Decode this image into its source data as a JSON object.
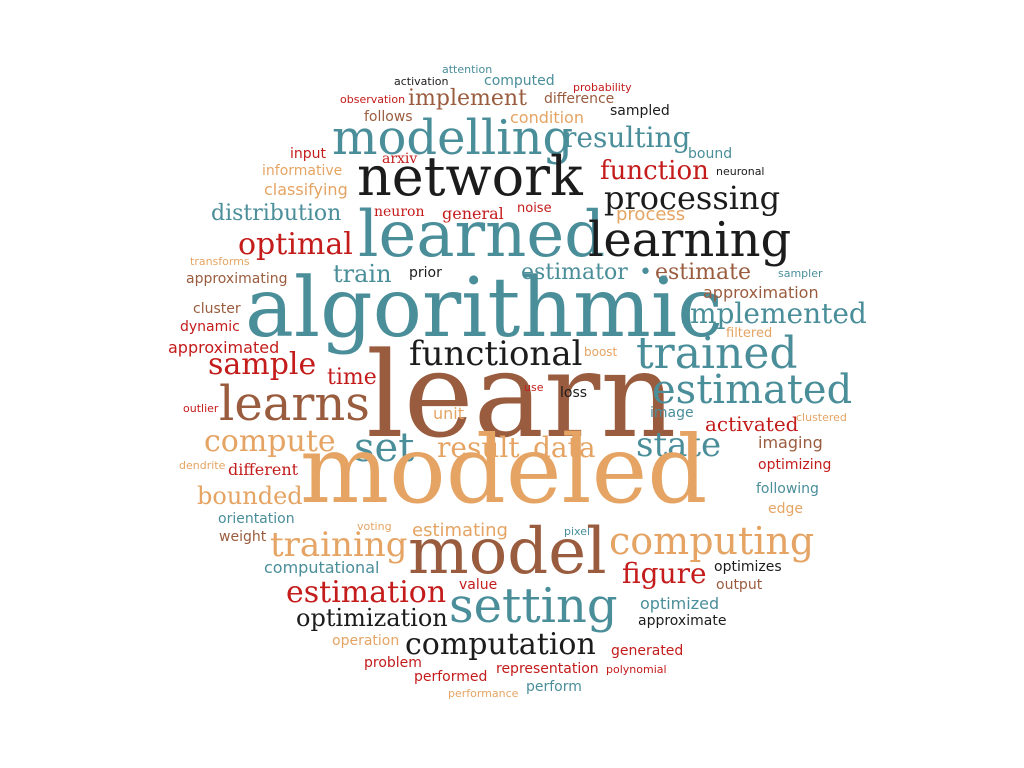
{
  "colors": {
    "teal": "#4a8e9a",
    "brown": "#9a5c3e",
    "orange": "#e5a463",
    "red": "#c41b1b",
    "black": "#1c1c1c"
  },
  "words": [
    {
      "text": "attention",
      "color": "teal"
    },
    {
      "text": "activation",
      "color": "black"
    },
    {
      "text": "computed",
      "color": "teal"
    },
    {
      "text": "probability",
      "color": "red"
    },
    {
      "text": "observation",
      "color": "red"
    },
    {
      "text": "implement",
      "color": "brown"
    },
    {
      "text": "difference",
      "color": "brown"
    },
    {
      "text": "follows",
      "color": "brown"
    },
    {
      "text": "condition",
      "color": "orange"
    },
    {
      "text": "sampled",
      "color": "black"
    },
    {
      "text": "modelling",
      "color": "teal"
    },
    {
      "text": "resulting",
      "color": "teal"
    },
    {
      "text": "input",
      "color": "red"
    },
    {
      "text": "arxiv",
      "color": "red"
    },
    {
      "text": "bound",
      "color": "teal"
    },
    {
      "text": "informative",
      "color": "orange"
    },
    {
      "text": "network",
      "color": "black"
    },
    {
      "text": "function",
      "color": "red"
    },
    {
      "text": "neuronal",
      "color": "black"
    },
    {
      "text": "classifying",
      "color": "orange"
    },
    {
      "text": "processing",
      "color": "black"
    },
    {
      "text": "distribution",
      "color": "teal"
    },
    {
      "text": "neuron",
      "color": "red"
    },
    {
      "text": "general",
      "color": "red"
    },
    {
      "text": "noise",
      "color": "red"
    },
    {
      "text": "process",
      "color": "orange"
    },
    {
      "text": "learned",
      "color": "teal"
    },
    {
      "text": "optimal",
      "color": "red"
    },
    {
      "text": "learning",
      "color": "black"
    },
    {
      "text": "transforms",
      "color": "orange"
    },
    {
      "text": "approximating",
      "color": "brown"
    },
    {
      "text": "train",
      "color": "teal"
    },
    {
      "text": "prior",
      "color": "black"
    },
    {
      "text": "estimator",
      "color": "teal"
    },
    {
      "text": "•",
      "color": "teal"
    },
    {
      "text": "estimate",
      "color": "brown"
    },
    {
      "text": "sampler",
      "color": "teal"
    },
    {
      "text": "algorithmic",
      "color": "teal"
    },
    {
      "text": "approximation",
      "color": "brown"
    },
    {
      "text": "cluster",
      "color": "brown"
    },
    {
      "text": "implemented",
      "color": "teal"
    },
    {
      "text": "dynamic",
      "color": "red"
    },
    {
      "text": "filtered",
      "color": "orange"
    },
    {
      "text": "approximated",
      "color": "red"
    },
    {
      "text": "functional",
      "color": "black"
    },
    {
      "text": "boost",
      "color": "orange"
    },
    {
      "text": "trained",
      "color": "teal"
    },
    {
      "text": "sample",
      "color": "red"
    },
    {
      "text": "time",
      "color": "red"
    },
    {
      "text": "learn",
      "color": "brown"
    },
    {
      "text": "estimated",
      "color": "teal"
    },
    {
      "text": "outlier",
      "color": "red"
    },
    {
      "text": "learns",
      "color": "brown"
    },
    {
      "text": "use",
      "color": "red"
    },
    {
      "text": "loss",
      "color": "black"
    },
    {
      "text": "unit",
      "color": "orange"
    },
    {
      "text": "image",
      "color": "teal"
    },
    {
      "text": "clustered",
      "color": "orange"
    },
    {
      "text": "activated",
      "color": "red"
    },
    {
      "text": "compute",
      "color": "orange"
    },
    {
      "text": "set",
      "color": "teal"
    },
    {
      "text": "result",
      "color": "orange"
    },
    {
      "text": "data",
      "color": "orange"
    },
    {
      "text": "state",
      "color": "teal"
    },
    {
      "text": "imaging",
      "color": "brown"
    },
    {
      "text": "dendrite",
      "color": "orange"
    },
    {
      "text": "different",
      "color": "red"
    },
    {
      "text": "modeled",
      "color": "orange"
    },
    {
      "text": "optimizing",
      "color": "red"
    },
    {
      "text": "bounded",
      "color": "orange"
    },
    {
      "text": "following",
      "color": "teal"
    },
    {
      "text": "orientation",
      "color": "teal"
    },
    {
      "text": "edge",
      "color": "orange"
    },
    {
      "text": "voting",
      "color": "orange"
    },
    {
      "text": "estimating",
      "color": "orange"
    },
    {
      "text": "pixel",
      "color": "teal"
    },
    {
      "text": "weight",
      "color": "brown"
    },
    {
      "text": "training",
      "color": "orange"
    },
    {
      "text": "model",
      "color": "brown"
    },
    {
      "text": "computing",
      "color": "orange"
    },
    {
      "text": "computational",
      "color": "teal"
    },
    {
      "text": "figure",
      "color": "red"
    },
    {
      "text": "optimizes",
      "color": "black"
    },
    {
      "text": "estimation",
      "color": "red"
    },
    {
      "text": "value",
      "color": "red"
    },
    {
      "text": "output",
      "color": "brown"
    },
    {
      "text": "setting",
      "color": "teal"
    },
    {
      "text": "optimized",
      "color": "teal"
    },
    {
      "text": "optimization",
      "color": "black"
    },
    {
      "text": "approximate",
      "color": "black"
    },
    {
      "text": "operation",
      "color": "orange"
    },
    {
      "text": "computation",
      "color": "black"
    },
    {
      "text": "problem",
      "color": "red"
    },
    {
      "text": "generated",
      "color": "red"
    },
    {
      "text": "performed",
      "color": "red"
    },
    {
      "text": "representation",
      "color": "red"
    },
    {
      "text": "polynomial",
      "color": "red"
    },
    {
      "text": "performance",
      "color": "orange"
    },
    {
      "text": "perform",
      "color": "teal"
    }
  ]
}
